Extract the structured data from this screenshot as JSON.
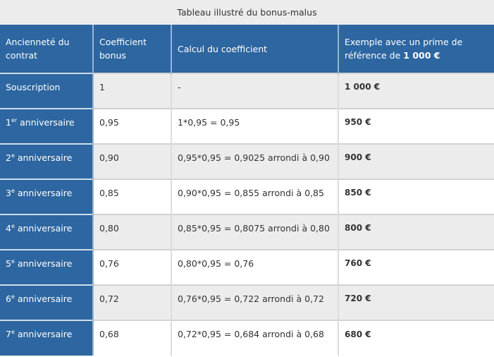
{
  "caption": "Tableau illustré du bonus-malus",
  "colors": {
    "header_bg": "#2d66a0",
    "header_text": "#ffffff",
    "alt_row_bg": "#ececec",
    "row_bg": "#ffffff"
  },
  "headers": {
    "col1": "Ancienneté du contrat",
    "col2": "Coefficient bonus",
    "col3": "Calcul du coefficient",
    "col4_prefix": "Exemple avec un prime de référence de ",
    "col4_bold": "1 000 €"
  },
  "rows": [
    {
      "label_num": "",
      "label_sup": "",
      "label_text": "Souscription",
      "coef": "1",
      "calc": "-",
      "example": "1 000 €"
    },
    {
      "label_num": "1",
      "label_sup": "er",
      "label_text": " anniversaire",
      "coef": "0,95",
      "calc": "1*0,95 = 0,95",
      "example": "950 €"
    },
    {
      "label_num": "2",
      "label_sup": "e",
      "label_text": " anniversaire",
      "coef": "0,90",
      "calc": "0,95*0,95 = 0,9025 arrondi à 0,90",
      "example": "900 €"
    },
    {
      "label_num": "3",
      "label_sup": "e",
      "label_text": " anniversaire",
      "coef": "0,85",
      "calc": "0,90*0,95 = 0,855 arrondi à 0,85",
      "example": "850 €"
    },
    {
      "label_num": "4",
      "label_sup": "e",
      "label_text": " anniversaire",
      "coef": "0,80",
      "calc": "0,85*0,95 = 0,8075 arrondi à 0,80",
      "example": "800 €"
    },
    {
      "label_num": "5",
      "label_sup": "e",
      "label_text": " anniversaire",
      "coef": "0,76",
      "calc": "0,80*0,95 = 0,76",
      "example": "760 €"
    },
    {
      "label_num": "6",
      "label_sup": "e",
      "label_text": " anniversaire",
      "coef": "0,72",
      "calc": "0,76*0,95 = 0,722 arrondi à 0,72",
      "example": "720 €"
    },
    {
      "label_num": "7",
      "label_sup": "e",
      "label_text": " anniversaire",
      "coef": "0,68",
      "calc": "0,72*0,95 = 0,684 arrondi à 0,68",
      "example": "680 €"
    }
  ]
}
